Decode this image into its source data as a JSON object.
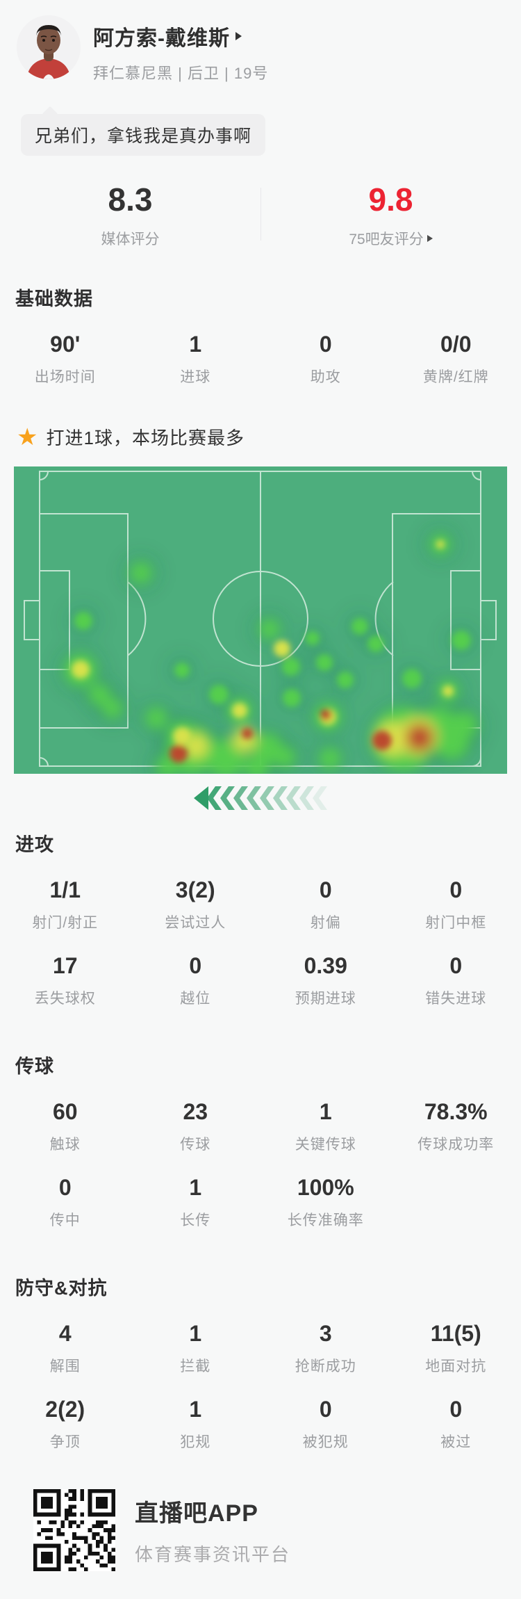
{
  "page": {
    "background": "#f7f8f8"
  },
  "header": {
    "player_name": "阿方索-戴维斯",
    "team_line": "拜仁慕尼黑 | 后卫 | 19号",
    "quote": "兄弟们，拿钱我是真办事啊"
  },
  "ratings": {
    "left": {
      "value": "8.3",
      "label": "媒体评分"
    },
    "right": {
      "value": "9.8",
      "label": "75吧友评分"
    },
    "right_value_color": "#ec2332"
  },
  "stats": {
    "basic": {
      "title": "基础数据",
      "rows": [
        [
          {
            "value": "90'",
            "label": "出场时间"
          },
          {
            "value": "1",
            "label": "进球"
          },
          {
            "value": "0",
            "label": "助攻"
          },
          {
            "value": "0/0",
            "label": "黄牌/红牌"
          }
        ]
      ]
    },
    "highlight": {
      "text": "打进1球，本场比赛最多",
      "star_color": "#f8a21d"
    },
    "attack": {
      "title": "进攻",
      "rows": [
        [
          {
            "value": "1/1",
            "label": "射门/射正"
          },
          {
            "value": "3(2)",
            "label": "尝试过人"
          },
          {
            "value": "0",
            "label": "射偏"
          },
          {
            "value": "0",
            "label": "射门中框"
          }
        ],
        [
          {
            "value": "17",
            "label": "丢失球权"
          },
          {
            "value": "0",
            "label": "越位"
          },
          {
            "value": "0.39",
            "label": "预期进球"
          },
          {
            "value": "0",
            "label": "错失进球"
          }
        ]
      ]
    },
    "passing": {
      "title": "传球",
      "rows": [
        [
          {
            "value": "60",
            "label": "触球"
          },
          {
            "value": "23",
            "label": "传球"
          },
          {
            "value": "1",
            "label": "关键传球"
          },
          {
            "value": "78.3%",
            "label": "传球成功率"
          }
        ],
        [
          {
            "value": "0",
            "label": "传中"
          },
          {
            "value": "1",
            "label": "长传"
          },
          {
            "value": "100%",
            "label": "长传准确率"
          }
        ]
      ]
    },
    "defense": {
      "title": "防守&对抗",
      "rows": [
        [
          {
            "value": "4",
            "label": "解围"
          },
          {
            "value": "1",
            "label": "拦截"
          },
          {
            "value": "3",
            "label": "抢断成功"
          },
          {
            "value": "11(5)",
            "label": "地面对抗"
          }
        ],
        [
          {
            "value": "2(2)",
            "label": "争顶"
          },
          {
            "value": "1",
            "label": "犯规"
          },
          {
            "value": "0",
            "label": "被犯规"
          },
          {
            "value": "0",
            "label": "被过"
          }
        ]
      ]
    }
  },
  "heatmap": {
    "pitch_color": "#4dae7d",
    "line_color": "#dff2e6",
    "halo_color": "#14604a",
    "palette": {
      "g": "#55ce4e",
      "y": "#d8e14b",
      "r": "#bb4a2f"
    },
    "attack_direction": "left",
    "chevron": {
      "count": 10,
      "color": "#2f9d68"
    },
    "blobs": [
      [
        183,
        153,
        16,
        "g"
      ],
      [
        100,
        222,
        13,
        "g"
      ],
      [
        614,
        112,
        15,
        "g"
      ],
      [
        614,
        112,
        6,
        "y"
      ],
      [
        644,
        250,
        14,
        "g"
      ],
      [
        368,
        234,
        15,
        "g"
      ],
      [
        386,
        262,
        12,
        "y"
      ],
      [
        399,
        288,
        13,
        "g"
      ],
      [
        447,
        282,
        12,
        "g"
      ],
      [
        498,
        230,
        12,
        "g"
      ],
      [
        521,
        255,
        12,
        "g"
      ],
      [
        96,
        293,
        24,
        "g"
      ],
      [
        96,
        292,
        13,
        "y"
      ],
      [
        123,
        328,
        16,
        "g"
      ],
      [
        142,
        348,
        15,
        "g"
      ],
      [
        242,
        293,
        11,
        "g"
      ],
      [
        295,
        328,
        14,
        "g"
      ],
      [
        325,
        351,
        18,
        "g"
      ],
      [
        325,
        351,
        11,
        "y"
      ],
      [
        205,
        362,
        16,
        "g"
      ],
      [
        242,
        388,
        22,
        "g"
      ],
      [
        242,
        388,
        13,
        "y"
      ],
      [
        255,
        408,
        36,
        "g"
      ],
      [
        237,
        413,
        13,
        "r"
      ],
      [
        262,
        402,
        18,
        "y"
      ],
      [
        305,
        420,
        28,
        "g"
      ],
      [
        332,
        393,
        17,
        "y"
      ],
      [
        336,
        384,
        8,
        "r"
      ],
      [
        365,
        405,
        22,
        "g"
      ],
      [
        350,
        432,
        18,
        "g"
      ],
      [
        390,
        418,
        16,
        "g"
      ],
      [
        220,
        432,
        16,
        "g"
      ],
      [
        400,
        333,
        13,
        "g"
      ],
      [
        452,
        360,
        20,
        "g"
      ],
      [
        452,
        360,
        12,
        "y"
      ],
      [
        449,
        357,
        8,
        "r"
      ],
      [
        477,
        307,
        12,
        "g"
      ],
      [
        430,
        247,
        10,
        "g"
      ],
      [
        455,
        420,
        16,
        "g"
      ],
      [
        560,
        392,
        46,
        "g"
      ],
      [
        610,
        378,
        32,
        "g"
      ],
      [
        545,
        392,
        24,
        "y"
      ],
      [
        530,
        394,
        14,
        "r"
      ],
      [
        582,
        388,
        28,
        "y"
      ],
      [
        584,
        390,
        20,
        "r"
      ],
      [
        630,
        396,
        26,
        "g"
      ],
      [
        648,
        372,
        20,
        "g"
      ],
      [
        573,
        305,
        14,
        "g"
      ],
      [
        625,
        323,
        16,
        "g"
      ],
      [
        625,
        323,
        8,
        "y"
      ]
    ]
  },
  "footer": {
    "app_name": "直播吧APP",
    "tagline": "体育赛事资讯平台"
  }
}
